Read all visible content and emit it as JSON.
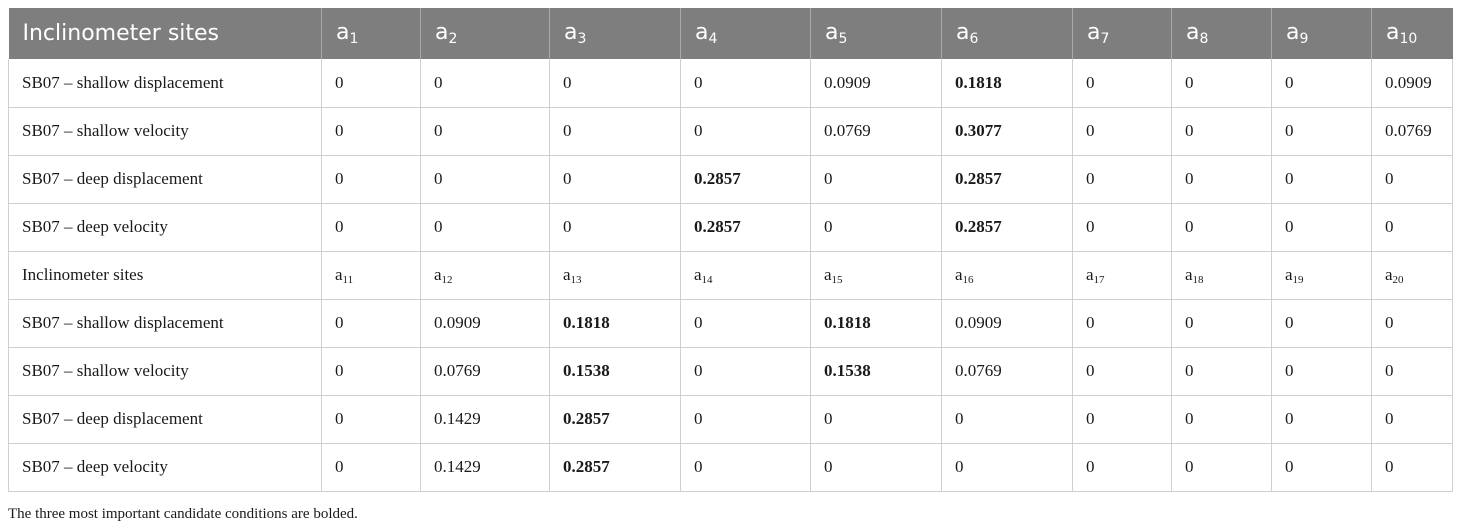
{
  "table": {
    "header": {
      "site_label": "Inclinometer sites",
      "letter": "a",
      "subs": [
        "1",
        "2",
        "3",
        "4",
        "5",
        "6",
        "7",
        "8",
        "9",
        "10"
      ]
    },
    "rows_top": [
      {
        "site": "SB07 – shallow displacement",
        "values": [
          "0",
          "0",
          "0",
          "0",
          "0.0909",
          "0.1818",
          "0",
          "0",
          "0",
          "0.0909"
        ],
        "bold": [
          false,
          false,
          false,
          false,
          false,
          true,
          false,
          false,
          false,
          false
        ]
      },
      {
        "site": "SB07 – shallow velocity",
        "values": [
          "0",
          "0",
          "0",
          "0",
          "0.0769",
          "0.3077",
          "0",
          "0",
          "0",
          "0.0769"
        ],
        "bold": [
          false,
          false,
          false,
          false,
          false,
          true,
          false,
          false,
          false,
          false
        ]
      },
      {
        "site": "SB07 – deep displacement",
        "values": [
          "0",
          "0",
          "0",
          "0.2857",
          "0",
          "0.2857",
          "0",
          "0",
          "0",
          "0"
        ],
        "bold": [
          false,
          false,
          false,
          true,
          false,
          true,
          false,
          false,
          false,
          false
        ]
      },
      {
        "site": "SB07 – deep velocity",
        "values": [
          "0",
          "0",
          "0",
          "0.2857",
          "0",
          "0.2857",
          "0",
          "0",
          "0",
          "0"
        ],
        "bold": [
          false,
          false,
          false,
          true,
          false,
          true,
          false,
          false,
          false,
          false
        ]
      }
    ],
    "subheader": {
      "site_label": "Inclinometer sites",
      "letter": "a",
      "subs": [
        "11",
        "12",
        "13",
        "14",
        "15",
        "16",
        "17",
        "18",
        "19",
        "20"
      ]
    },
    "rows_bottom": [
      {
        "site": "SB07 – shallow displacement",
        "values": [
          "0",
          "0.0909",
          "0.1818",
          "0",
          "0.1818",
          "0.0909",
          "0",
          "0",
          "0",
          "0"
        ],
        "bold": [
          false,
          false,
          true,
          false,
          true,
          false,
          false,
          false,
          false,
          false
        ]
      },
      {
        "site": "SB07 – shallow velocity",
        "values": [
          "0",
          "0.0769",
          "0.1538",
          "0",
          "0.1538",
          "0.0769",
          "0",
          "0",
          "0",
          "0"
        ],
        "bold": [
          false,
          false,
          true,
          false,
          true,
          false,
          false,
          false,
          false,
          false
        ]
      },
      {
        "site": "SB07 – deep displacement",
        "values": [
          "0",
          "0.1429",
          "0.2857",
          "0",
          "0",
          "0",
          "0",
          "0",
          "0",
          "0"
        ],
        "bold": [
          false,
          false,
          true,
          false,
          false,
          false,
          false,
          false,
          false,
          false
        ]
      },
      {
        "site": "SB07 – deep velocity",
        "values": [
          "0",
          "0.1429",
          "0.2857",
          "0",
          "0",
          "0",
          "0",
          "0",
          "0",
          "0"
        ],
        "bold": [
          false,
          false,
          true,
          false,
          false,
          false,
          false,
          false,
          false,
          false
        ]
      }
    ]
  },
  "footnote": "The three most important candidate conditions are bolded."
}
